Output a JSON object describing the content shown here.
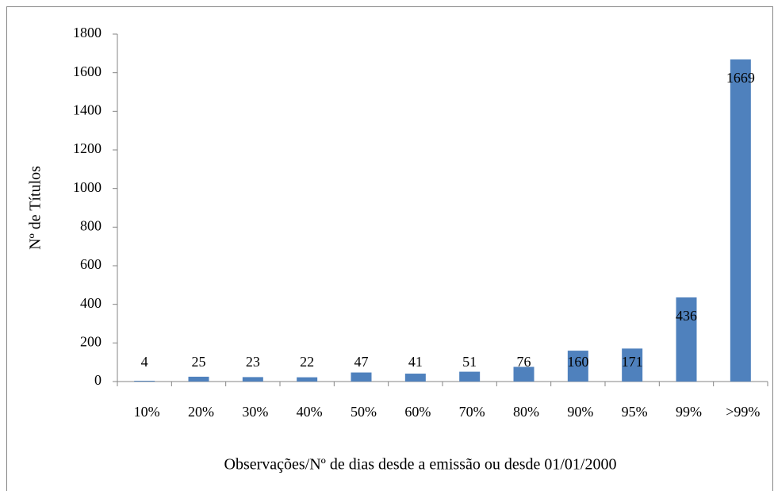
{
  "chart_data": {
    "type": "bar",
    "categories": [
      "10%",
      "20%",
      "30%",
      "40%",
      "50%",
      "60%",
      "70%",
      "80%",
      "90%",
      "95%",
      "99%",
      ">99%"
    ],
    "values": [
      4,
      25,
      23,
      22,
      47,
      41,
      51,
      76,
      160,
      171,
      436,
      1669
    ],
    "color": "#4f81bd",
    "ylim": [
      0,
      1800
    ],
    "yticks": [
      0,
      200,
      400,
      600,
      800,
      1000,
      1200,
      1400,
      1600,
      1800
    ],
    "ylabel": "Nº de Títulos",
    "xlabel": "Observações/Nº de dias desde a emissão ou desde 01/01/2000",
    "grid": false
  }
}
